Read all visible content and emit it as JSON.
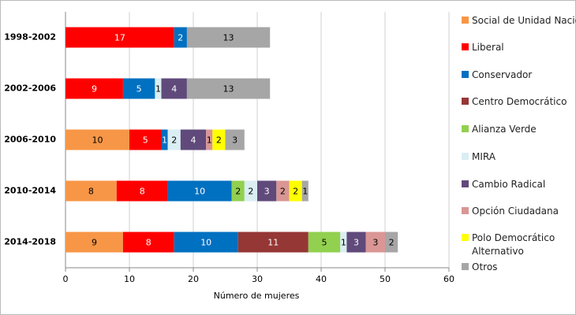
{
  "chart_data": {
    "type": "stacked-bar-horizontal",
    "x_label": "Número de mujeres",
    "categories": [
      "1998-2002",
      "2002-2006",
      "2006-2010",
      "2010-2014",
      "2014-2018"
    ],
    "xlim": [
      0,
      60
    ],
    "xticks": [
      0,
      10,
      20,
      30,
      40,
      50,
      60
    ],
    "grid": true,
    "series": [
      {
        "name": "Social de Unidad Nacional",
        "color": "#f79646",
        "values": [
          null,
          null,
          10,
          8,
          9
        ]
      },
      {
        "name": "Liberal",
        "color": "#ff0000",
        "values": [
          17,
          9,
          5,
          8,
          8
        ]
      },
      {
        "name": "Conservador",
        "color": "#0070c0",
        "values": [
          2,
          5,
          1,
          10,
          10
        ]
      },
      {
        "name": "Centro Democrático",
        "color": "#953735",
        "values": [
          null,
          null,
          null,
          null,
          11
        ]
      },
      {
        "name": "Alianza Verde",
        "color": "#92d050",
        "values": [
          null,
          null,
          null,
          2,
          5
        ]
      },
      {
        "name": "MIRA",
        "color": "#daeef3",
        "values": [
          null,
          1,
          2,
          2,
          1
        ]
      },
      {
        "name": "Cambio Radical",
        "color": "#604a7b",
        "values": [
          null,
          4,
          4,
          3,
          3
        ]
      },
      {
        "name": "Opción Ciudadana",
        "color": "#d99694",
        "values": [
          null,
          null,
          1,
          2,
          3
        ]
      },
      {
        "name": "Polo Democrático Alternativo",
        "color": "#ffff00",
        "values": [
          null,
          null,
          2,
          2,
          null
        ]
      },
      {
        "name": "Otros",
        "color": "#a6a6a6",
        "values": [
          13,
          13,
          3,
          1,
          2
        ]
      }
    ]
  }
}
